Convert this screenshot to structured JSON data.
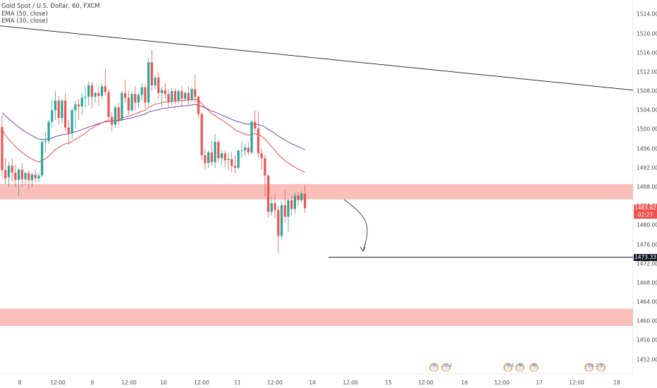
{
  "legend": {
    "symbol": "Gold Spot / U.S. Dollar, 60, FXCM",
    "ema50": "EMA (50, close)",
    "ema30": "EMA (30, close)"
  },
  "colors": {
    "up": "#26a69a",
    "down": "#ef5350",
    "ema30": "#e53935",
    "ema50": "#5e35b1",
    "zone": "#f8a9a4",
    "trendline": "#131722",
    "axis_text": "#4a4a4a"
  },
  "price_axis": {
    "ticks": [
      "1524.00",
      "1520.00",
      "1516.00",
      "1512.00",
      "1508.00",
      "1504.00",
      "1500.00",
      "1496.00",
      "1492.00",
      "1488.00",
      "1484.00",
      "1480.00",
      "1476.00",
      "1472.00",
      "1468.00",
      "1464.00",
      "1460.00",
      "1456.00",
      "1452.00"
    ],
    "current_price": "1483.62",
    "countdown": "02:27",
    "target_price": "1473.33"
  },
  "time_axis": {
    "labels": [
      "8",
      "12:00",
      "9",
      "12:00",
      "10",
      "12:00",
      "11",
      "12:00",
      "14",
      "12:00",
      "15",
      "12:00",
      "16",
      "12:00",
      "17",
      "12:00",
      "18"
    ]
  },
  "events": [
    {
      "name": "event-flag-1",
      "label": "3"
    },
    {
      "name": "event-flag-2",
      "label": "2 2"
    },
    {
      "name": "event-flag-3",
      "label": "5 5"
    },
    {
      "name": "event-flag-4",
      "label": "9"
    },
    {
      "name": "event-flag-5",
      "label": "8"
    },
    {
      "name": "event-flag-6",
      "label": "13 2"
    },
    {
      "name": "event-flag-7",
      "label": "2"
    }
  ],
  "chart_data": {
    "type": "candlestick",
    "symbol": "XAUUSD",
    "interval": "60",
    "ylim": [
      1449,
      1527
    ],
    "y_ticks": [
      1452,
      1456,
      1460,
      1464,
      1468,
      1472,
      1476,
      1480,
      1484,
      1488,
      1492,
      1496,
      1500,
      1504,
      1508,
      1512,
      1516,
      1520,
      1524
    ],
    "x_labels": [
      "8",
      "12:00",
      "9",
      "12:00",
      "10",
      "12:00",
      "11",
      "12:00",
      "14",
      "12:00",
      "15",
      "12:00",
      "16",
      "12:00",
      "17",
      "12:00",
      "18"
    ],
    "candles": [
      {
        "o": 1500.5,
        "h": 1503.0,
        "c": 1491.5,
        "l": 1490.0
      },
      {
        "o": 1491.5,
        "h": 1494.0,
        "c": 1489.8,
        "l": 1488.5
      },
      {
        "o": 1490.0,
        "h": 1493.2,
        "c": 1492.4,
        "l": 1488.0
      },
      {
        "o": 1492.4,
        "h": 1494.0,
        "c": 1491.0,
        "l": 1489.0
      },
      {
        "o": 1491.0,
        "h": 1492.6,
        "c": 1489.5,
        "l": 1488.0
      },
      {
        "o": 1489.5,
        "h": 1492.0,
        "c": 1491.6,
        "l": 1486.0
      },
      {
        "o": 1491.6,
        "h": 1493.0,
        "c": 1489.6,
        "l": 1488.0
      },
      {
        "o": 1489.6,
        "h": 1491.2,
        "c": 1490.9,
        "l": 1488.4
      },
      {
        "o": 1490.9,
        "h": 1491.5,
        "c": 1489.4,
        "l": 1487.6
      },
      {
        "o": 1489.4,
        "h": 1491.0,
        "c": 1490.6,
        "l": 1488.0
      },
      {
        "o": 1490.6,
        "h": 1491.6,
        "c": 1489.8,
        "l": 1488.8
      },
      {
        "o": 1489.8,
        "h": 1491.0,
        "c": 1490.4,
        "l": 1489.0
      },
      {
        "o": 1490.4,
        "h": 1497.8,
        "c": 1497.4,
        "l": 1490.0
      },
      {
        "o": 1497.4,
        "h": 1499.6,
        "c": 1497.6,
        "l": 1495.2
      },
      {
        "o": 1497.6,
        "h": 1502.0,
        "c": 1501.6,
        "l": 1497.0
      },
      {
        "o": 1501.6,
        "h": 1506.2,
        "c": 1504.0,
        "l": 1500.4
      },
      {
        "o": 1504.0,
        "h": 1508.0,
        "c": 1506.0,
        "l": 1502.0
      },
      {
        "o": 1506.0,
        "h": 1507.0,
        "c": 1502.4,
        "l": 1501.0
      },
      {
        "o": 1502.4,
        "h": 1506.4,
        "c": 1506.0,
        "l": 1501.2
      },
      {
        "o": 1506.0,
        "h": 1507.6,
        "c": 1500.4,
        "l": 1499.6
      },
      {
        "o": 1500.4,
        "h": 1502.0,
        "c": 1499.2,
        "l": 1496.8
      },
      {
        "o": 1499.2,
        "h": 1504.6,
        "c": 1504.0,
        "l": 1498.0
      },
      {
        "o": 1504.0,
        "h": 1506.0,
        "c": 1505.2,
        "l": 1500.2
      },
      {
        "o": 1505.2,
        "h": 1506.4,
        "c": 1504.8,
        "l": 1502.0
      },
      {
        "o": 1504.8,
        "h": 1507.6,
        "c": 1506.6,
        "l": 1503.0
      },
      {
        "o": 1506.6,
        "h": 1509.0,
        "c": 1506.8,
        "l": 1504.6
      },
      {
        "o": 1506.8,
        "h": 1510.0,
        "c": 1509.2,
        "l": 1505.0
      },
      {
        "o": 1509.2,
        "h": 1510.0,
        "c": 1506.8,
        "l": 1504.4
      },
      {
        "o": 1506.8,
        "h": 1508.0,
        "c": 1507.6,
        "l": 1505.6
      },
      {
        "o": 1507.6,
        "h": 1509.0,
        "c": 1507.0,
        "l": 1505.0
      },
      {
        "o": 1507.0,
        "h": 1509.6,
        "c": 1509.0,
        "l": 1506.4
      },
      {
        "o": 1509.0,
        "h": 1512.6,
        "c": 1507.8,
        "l": 1507.0
      },
      {
        "o": 1507.8,
        "h": 1508.4,
        "c": 1502.6,
        "l": 1501.6
      },
      {
        "o": 1502.6,
        "h": 1503.6,
        "c": 1501.0,
        "l": 1499.6
      },
      {
        "o": 1501.0,
        "h": 1505.0,
        "c": 1504.6,
        "l": 1500.4
      },
      {
        "o": 1504.6,
        "h": 1505.6,
        "c": 1502.0,
        "l": 1500.8
      },
      {
        "o": 1502.0,
        "h": 1508.0,
        "c": 1507.6,
        "l": 1501.6
      },
      {
        "o": 1507.6,
        "h": 1510.4,
        "c": 1506.6,
        "l": 1505.6
      },
      {
        "o": 1506.6,
        "h": 1508.0,
        "c": 1504.0,
        "l": 1503.0
      },
      {
        "o": 1504.0,
        "h": 1507.8,
        "c": 1507.4,
        "l": 1503.6
      },
      {
        "o": 1507.4,
        "h": 1509.0,
        "c": 1505.6,
        "l": 1504.0
      },
      {
        "o": 1505.6,
        "h": 1507.6,
        "c": 1507.2,
        "l": 1504.6
      },
      {
        "o": 1507.2,
        "h": 1509.6,
        "c": 1508.8,
        "l": 1506.0
      },
      {
        "o": 1508.8,
        "h": 1509.4,
        "c": 1505.6,
        "l": 1504.4
      },
      {
        "o": 1505.6,
        "h": 1515.0,
        "c": 1514.0,
        "l": 1505.0
      },
      {
        "o": 1514.0,
        "h": 1516.6,
        "c": 1509.2,
        "l": 1508.0
      },
      {
        "o": 1509.2,
        "h": 1511.4,
        "c": 1510.8,
        "l": 1508.4
      },
      {
        "o": 1510.8,
        "h": 1512.0,
        "c": 1507.6,
        "l": 1506.4
      },
      {
        "o": 1507.6,
        "h": 1508.8,
        "c": 1508.2,
        "l": 1504.8
      },
      {
        "o": 1508.2,
        "h": 1509.6,
        "c": 1507.4,
        "l": 1506.4
      },
      {
        "o": 1507.4,
        "h": 1508.4,
        "c": 1505.8,
        "l": 1504.4
      },
      {
        "o": 1505.8,
        "h": 1508.6,
        "c": 1508.0,
        "l": 1505.0
      },
      {
        "o": 1508.0,
        "h": 1508.6,
        "c": 1506.0,
        "l": 1505.2
      },
      {
        "o": 1506.0,
        "h": 1508.4,
        "c": 1508.0,
        "l": 1505.4
      },
      {
        "o": 1508.0,
        "h": 1509.0,
        "c": 1506.4,
        "l": 1505.0
      },
      {
        "o": 1506.4,
        "h": 1508.0,
        "c": 1507.6,
        "l": 1505.8
      },
      {
        "o": 1507.6,
        "h": 1509.0,
        "c": 1506.2,
        "l": 1505.0
      },
      {
        "o": 1506.2,
        "h": 1508.8,
        "c": 1508.4,
        "l": 1505.8
      },
      {
        "o": 1508.4,
        "h": 1511.4,
        "c": 1506.8,
        "l": 1505.6
      },
      {
        "o": 1506.8,
        "h": 1507.0,
        "c": 1503.2,
        "l": 1502.4
      },
      {
        "o": 1503.2,
        "h": 1503.6,
        "c": 1494.6,
        "l": 1493.6
      },
      {
        "o": 1494.6,
        "h": 1496.0,
        "c": 1493.0,
        "l": 1491.6
      },
      {
        "o": 1493.0,
        "h": 1495.6,
        "c": 1495.2,
        "l": 1492.0
      },
      {
        "o": 1495.2,
        "h": 1497.6,
        "c": 1493.2,
        "l": 1492.4
      },
      {
        "o": 1493.2,
        "h": 1499.0,
        "c": 1497.4,
        "l": 1492.0
      },
      {
        "o": 1497.4,
        "h": 1497.8,
        "c": 1494.0,
        "l": 1493.0
      },
      {
        "o": 1494.0,
        "h": 1495.6,
        "c": 1495.0,
        "l": 1492.6
      },
      {
        "o": 1495.0,
        "h": 1495.6,
        "c": 1493.6,
        "l": 1492.2
      },
      {
        "o": 1493.6,
        "h": 1495.0,
        "c": 1493.8,
        "l": 1491.4
      },
      {
        "o": 1493.8,
        "h": 1495.2,
        "c": 1492.4,
        "l": 1491.0
      },
      {
        "o": 1492.4,
        "h": 1494.6,
        "c": 1492.0,
        "l": 1490.8
      },
      {
        "o": 1492.0,
        "h": 1495.8,
        "c": 1495.6,
        "l": 1491.6
      },
      {
        "o": 1495.6,
        "h": 1497.4,
        "c": 1495.6,
        "l": 1494.2
      },
      {
        "o": 1495.6,
        "h": 1497.0,
        "c": 1496.2,
        "l": 1494.6
      },
      {
        "o": 1496.2,
        "h": 1497.2,
        "c": 1495.2,
        "l": 1494.6
      },
      {
        "o": 1495.2,
        "h": 1502.0,
        "c": 1501.6,
        "l": 1494.8
      },
      {
        "o": 1501.6,
        "h": 1504.0,
        "c": 1500.2,
        "l": 1499.6
      },
      {
        "o": 1500.2,
        "h": 1503.8,
        "c": 1495.0,
        "l": 1494.0
      },
      {
        "o": 1495.0,
        "h": 1496.0,
        "c": 1494.0,
        "l": 1491.6
      },
      {
        "o": 1494.0,
        "h": 1494.8,
        "c": 1490.4,
        "l": 1486.0
      },
      {
        "o": 1490.4,
        "h": 1490.6,
        "c": 1482.8,
        "l": 1481.6
      },
      {
        "o": 1482.8,
        "h": 1486.0,
        "c": 1484.6,
        "l": 1482.0
      },
      {
        "o": 1484.6,
        "h": 1486.6,
        "c": 1483.2,
        "l": 1481.4
      },
      {
        "o": 1483.2,
        "h": 1484.0,
        "c": 1477.8,
        "l": 1474.2
      },
      {
        "o": 1477.8,
        "h": 1485.0,
        "c": 1484.2,
        "l": 1477.0
      },
      {
        "o": 1484.2,
        "h": 1487.4,
        "c": 1481.8,
        "l": 1480.6
      },
      {
        "o": 1481.8,
        "h": 1485.6,
        "c": 1485.2,
        "l": 1478.6
      },
      {
        "o": 1485.2,
        "h": 1486.2,
        "c": 1483.4,
        "l": 1482.0
      },
      {
        "o": 1483.4,
        "h": 1486.8,
        "c": 1486.2,
        "l": 1482.4
      },
      {
        "o": 1486.2,
        "h": 1487.0,
        "c": 1485.2,
        "l": 1484.0
      },
      {
        "o": 1485.2,
        "h": 1487.2,
        "c": 1486.6,
        "l": 1484.6
      },
      {
        "o": 1486.6,
        "h": 1488.4,
        "c": 1483.6,
        "l": 1482.6
      }
    ],
    "ema30": [
      1500.0,
      1498.8,
      1497.9,
      1497.2,
      1496.4,
      1495.8,
      1495.2,
      1494.7,
      1494.2,
      1493.8,
      1493.5,
      1493.2,
      1493.5,
      1493.9,
      1494.4,
      1495.1,
      1495.8,
      1496.2,
      1496.7,
      1497.0,
      1497.1,
      1497.5,
      1497.9,
      1498.3,
      1498.8,
      1499.2,
      1499.8,
      1500.2,
      1500.7,
      1501.0,
      1501.4,
      1501.7,
      1501.8,
      1501.7,
      1501.9,
      1501.9,
      1502.3,
      1502.6,
      1502.7,
      1503.0,
      1503.2,
      1503.5,
      1503.8,
      1504.0,
      1504.6,
      1504.9,
      1505.3,
      1505.4,
      1505.6,
      1505.7,
      1505.7,
      1505.9,
      1505.9,
      1506.0,
      1506.0,
      1506.1,
      1506.1,
      1506.2,
      1506.3,
      1506.1,
      1505.4,
      1504.6,
      1504.0,
      1503.2,
      1502.9,
      1502.4,
      1502.0,
      1501.5,
      1501.0,
      1500.5,
      1499.9,
      1499.6,
      1499.3,
      1499.0,
      1498.8,
      1499.0,
      1499.1,
      1498.9,
      1498.6,
      1498.0,
      1497.2,
      1496.4,
      1495.7,
      1494.7,
      1494.1,
      1493.5,
      1493.0,
      1492.5,
      1492.1,
      1491.7,
      1491.4,
      1491.0
    ],
    "ema50": [
      1503.5,
      1502.8,
      1502.2,
      1501.6,
      1501.0,
      1500.5,
      1500.0,
      1499.5,
      1499.1,
      1498.7,
      1498.3,
      1498.0,
      1497.9,
      1497.9,
      1498.0,
      1498.2,
      1498.5,
      1498.7,
      1498.9,
      1499.0,
      1499.1,
      1499.3,
      1499.5,
      1499.7,
      1500.0,
      1500.2,
      1500.5,
      1500.7,
      1501.0,
      1501.2,
      1501.4,
      1501.6,
      1501.7,
      1501.7,
      1501.8,
      1501.8,
      1502.0,
      1502.1,
      1502.3,
      1502.4,
      1502.6,
      1502.8,
      1503.0,
      1503.2,
      1503.6,
      1503.8,
      1504.0,
      1504.1,
      1504.3,
      1504.4,
      1504.5,
      1504.6,
      1504.7,
      1504.8,
      1504.9,
      1504.9,
      1505.0,
      1505.1,
      1505.2,
      1505.1,
      1504.8,
      1504.5,
      1504.2,
      1503.8,
      1503.6,
      1503.3,
      1503.0,
      1502.7,
      1502.4,
      1502.1,
      1501.8,
      1501.6,
      1501.4,
      1501.2,
      1501.1,
      1501.1,
      1501.1,
      1501.0,
      1500.8,
      1500.5,
      1500.0,
      1499.6,
      1499.2,
      1498.6,
      1498.2,
      1497.8,
      1497.4,
      1497.0,
      1496.7,
      1496.4,
      1496.1,
      1495.8
    ],
    "zones": [
      {
        "from": 1485.4,
        "to": 1488.6
      },
      {
        "from": 1459.0,
        "to": 1462.6
      }
    ],
    "trendline": {
      "from_price": 1521.6,
      "to_price": 1508.2
    },
    "target_line_price": 1473.33,
    "current_price": 1483.62,
    "projection": {
      "from_price": 1485.4,
      "to_price": 1474.6
    }
  }
}
